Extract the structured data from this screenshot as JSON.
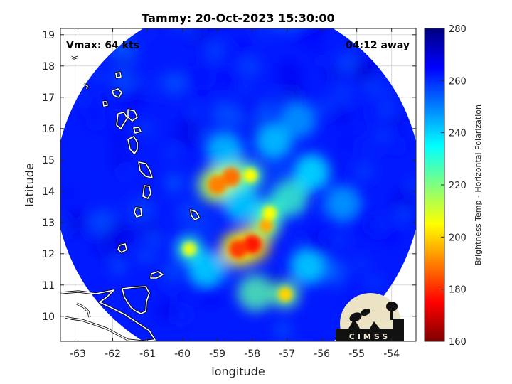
{
  "chart_data": {
    "type": "heatmap",
    "title": "Tammy: 20-Oct-2023 15:30:00",
    "annotations": {
      "vmax": "Vmax: 64 kts",
      "away": "04:12 away"
    },
    "xlabel": "longitude",
    "ylabel": "latitude",
    "xlim": [
      -63.5,
      -53.3
    ],
    "ylim": [
      9.2,
      19.2
    ],
    "xticks": [
      -63,
      -62,
      -61,
      -60,
      -59,
      -58,
      -57,
      -56,
      -55,
      -54
    ],
    "xtick_labels": [
      "-63",
      "-62",
      "-61",
      "-60",
      "-59",
      "-58",
      "-57",
      "-56",
      "-55",
      "-54"
    ],
    "yticks": [
      10,
      11,
      12,
      13,
      14,
      15,
      16,
      17,
      18,
      19
    ],
    "ytick_labels": [
      "10",
      "11",
      "12",
      "13",
      "14",
      "15",
      "16",
      "17",
      "18",
      "19"
    ],
    "grid": true,
    "colorbar": {
      "label": "Brightness Temp - Horizontal Polarization",
      "range": [
        160,
        280
      ],
      "ticks": [
        160,
        180,
        200,
        220,
        240,
        260,
        280
      ],
      "tick_labels": [
        "160",
        "180",
        "200",
        "220",
        "240",
        "260",
        "280"
      ],
      "colormap": "jet"
    },
    "swath": {
      "center": [
        -58.4,
        14.2
      ],
      "radius_deg": 5.25,
      "background_temp": 262
    },
    "features": [
      {
        "name": "eyewall-north-arc",
        "lon": -58.6,
        "lat": 14.45,
        "temp": 188
      },
      {
        "name": "eyewall-north-hook",
        "lon": -59.0,
        "lat": 14.2,
        "temp": 190
      },
      {
        "name": "eyewall-north-east",
        "lon": -58.05,
        "lat": 14.5,
        "temp": 205
      },
      {
        "name": "south-band-core",
        "lon": -58.0,
        "lat": 12.3,
        "temp": 178
      },
      {
        "name": "south-band-core-2",
        "lon": -58.4,
        "lat": 12.15,
        "temp": 182
      },
      {
        "name": "south-band-tail",
        "lon": -57.6,
        "lat": 12.9,
        "temp": 195
      },
      {
        "name": "south-band-tail-2",
        "lon": -57.5,
        "lat": 13.3,
        "temp": 205
      },
      {
        "name": "west-cell",
        "lon": -59.8,
        "lat": 12.15,
        "temp": 208
      },
      {
        "name": "southeast-cell",
        "lon": -57.05,
        "lat": 10.7,
        "temp": 200
      },
      {
        "name": "south-cell",
        "lon": -57.9,
        "lat": 10.75,
        "temp": 225
      },
      {
        "name": "center-warm",
        "lon": -58.3,
        "lat": 13.6,
        "temp": 238
      },
      {
        "name": "east-band",
        "lon": -56.9,
        "lat": 13.8,
        "temp": 228
      },
      {
        "name": "east-band-2",
        "lon": -56.3,
        "lat": 14.6,
        "temp": 236
      },
      {
        "name": "north-band",
        "lon": -58.8,
        "lat": 15.3,
        "temp": 240
      },
      {
        "name": "north-band-2",
        "lon": -57.4,
        "lat": 15.6,
        "temp": 240
      },
      {
        "name": "southwest-band",
        "lon": -59.3,
        "lat": 11.5,
        "temp": 238
      },
      {
        "name": "southeast-band",
        "lon": -56.4,
        "lat": 11.6,
        "temp": 238
      },
      {
        "name": "northeast-band",
        "lon": -56.7,
        "lat": 16.3,
        "temp": 246
      },
      {
        "name": "east-far-band",
        "lon": -55.4,
        "lat": 13.6,
        "temp": 245
      }
    ]
  },
  "logo": {
    "text": "CIMSS"
  },
  "colors": {
    "coastline": "#ffffff",
    "coastline_edge": "#000000",
    "grid": "#d8d8d8",
    "axes": "#262626"
  }
}
